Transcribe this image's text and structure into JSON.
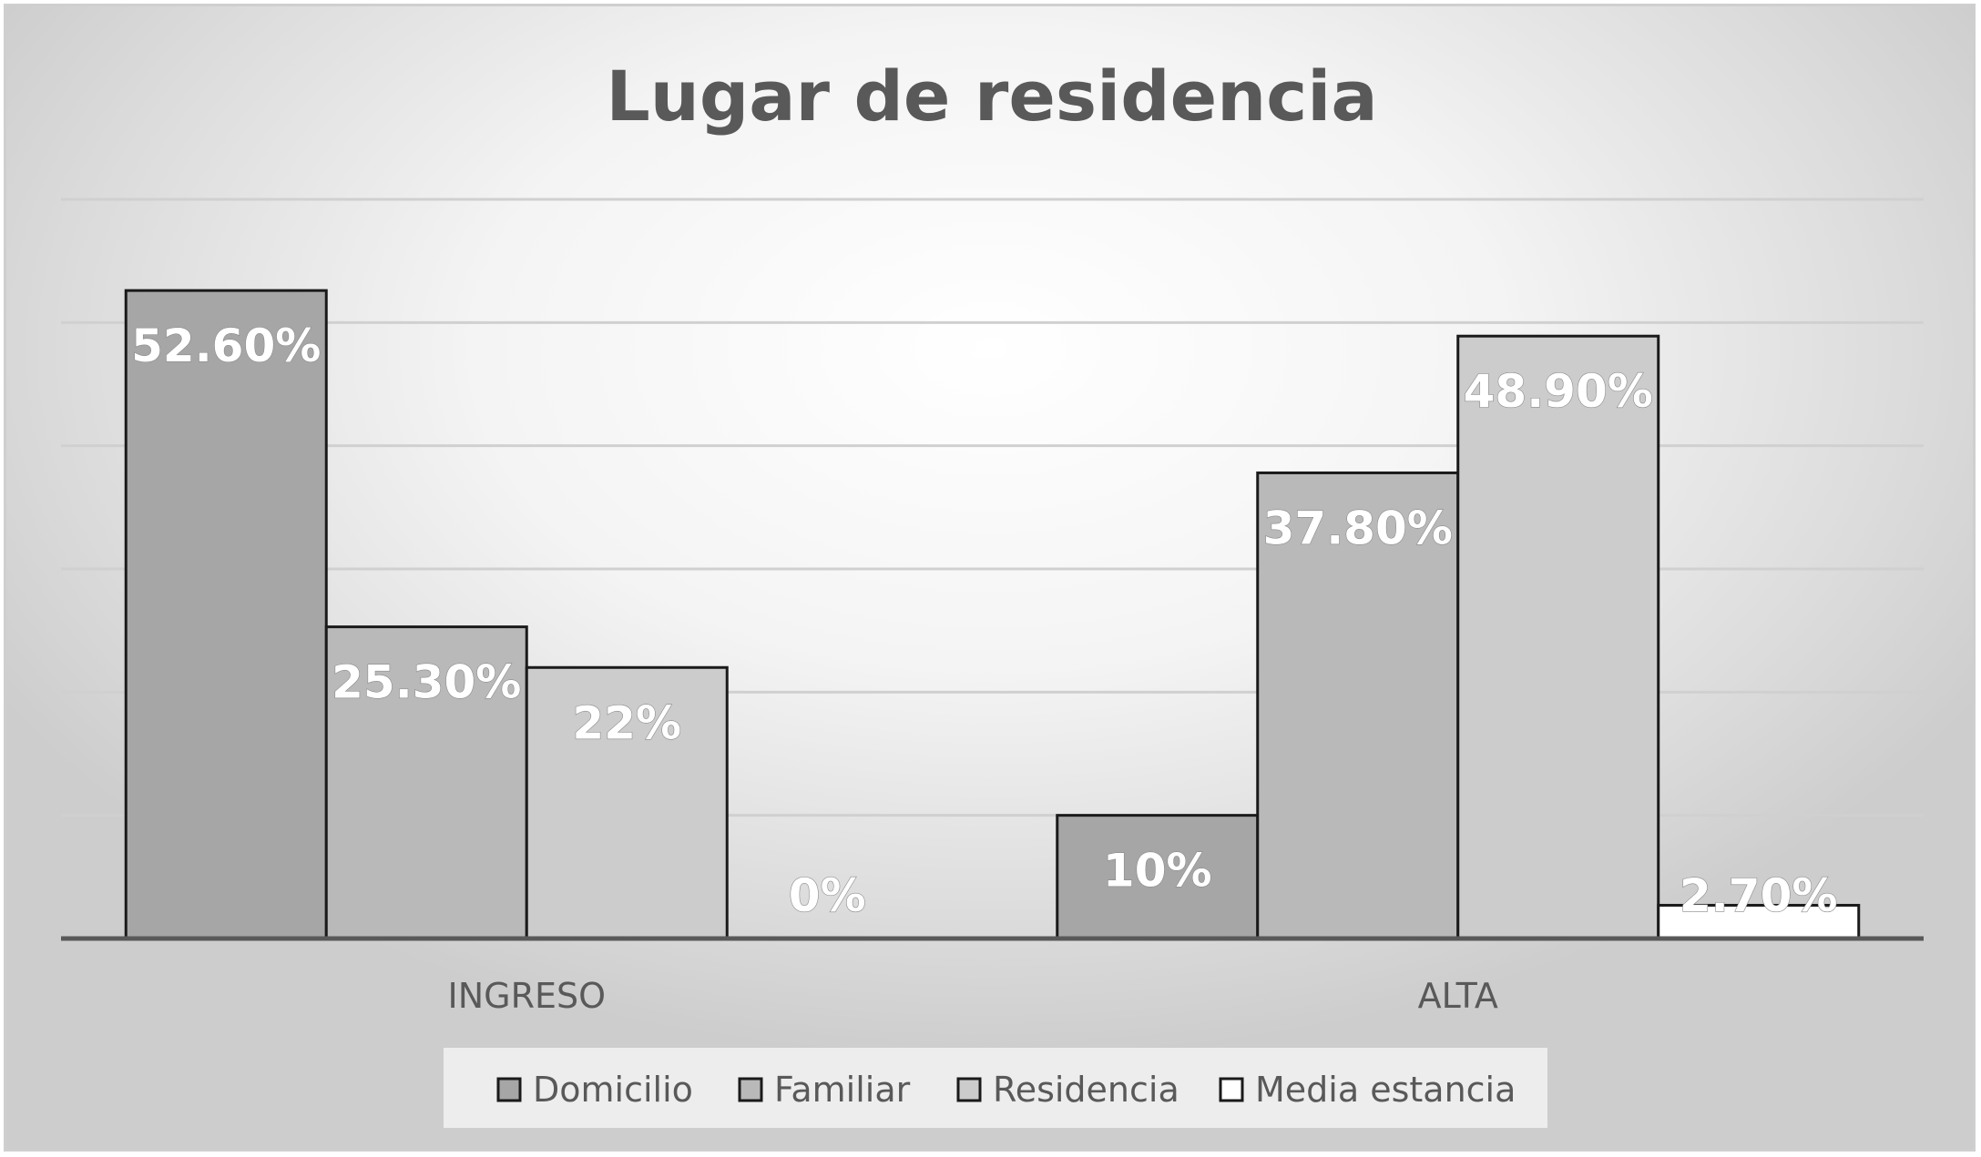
{
  "chart_data": {
    "type": "bar",
    "title": "Lugar de residencia",
    "categories": [
      "INGRESO",
      "ALTA"
    ],
    "series": [
      {
        "name": "Domicilio",
        "values": [
          52.6,
          10
        ],
        "labels": [
          "52.60%",
          "10%"
        ],
        "color": "#a6a6a6"
      },
      {
        "name": "Familiar",
        "values": [
          25.3,
          37.8
        ],
        "labels": [
          "25.30%",
          "37.80%"
        ],
        "color": "#b9b9b9"
      },
      {
        "name": "Residencia",
        "values": [
          22,
          48.9
        ],
        "labels": [
          "22%",
          "48.90%"
        ],
        "color": "#cccccc"
      },
      {
        "name": "Media estancia",
        "values": [
          0,
          2.7
        ],
        "labels": [
          "0%",
          "2.70%"
        ],
        "color": "#ffffff"
      }
    ],
    "ylim": [
      0,
      60
    ],
    "grid": true,
    "legend_position": "bottom"
  }
}
